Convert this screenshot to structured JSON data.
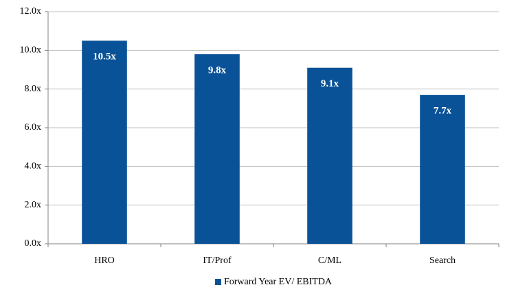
{
  "chart_data": {
    "type": "bar",
    "categories": [
      "HRO",
      "IT/Prof",
      "C/ML",
      "Search"
    ],
    "series": [
      {
        "name": "Forward Year EV/ EBITDA",
        "color": "#0a5297",
        "values": [
          10.5,
          9.8,
          9.1,
          7.7
        ],
        "value_labels": [
          "10.5x",
          "9.8x",
          "9.1x",
          "7.7x"
        ]
      }
    ],
    "ylim": [
      0,
      12
    ],
    "yticks": [
      {
        "value": 0,
        "label": "0.0x"
      },
      {
        "value": 2,
        "label": "2.0x"
      },
      {
        "value": 4,
        "label": "4.0x"
      },
      {
        "value": 6,
        "label": "6.0x"
      },
      {
        "value": 8,
        "label": "8.0x"
      },
      {
        "value": 10,
        "label": "10.0x"
      },
      {
        "value": 12,
        "label": "12.0x"
      }
    ],
    "grid": true,
    "legend": "bottom"
  }
}
